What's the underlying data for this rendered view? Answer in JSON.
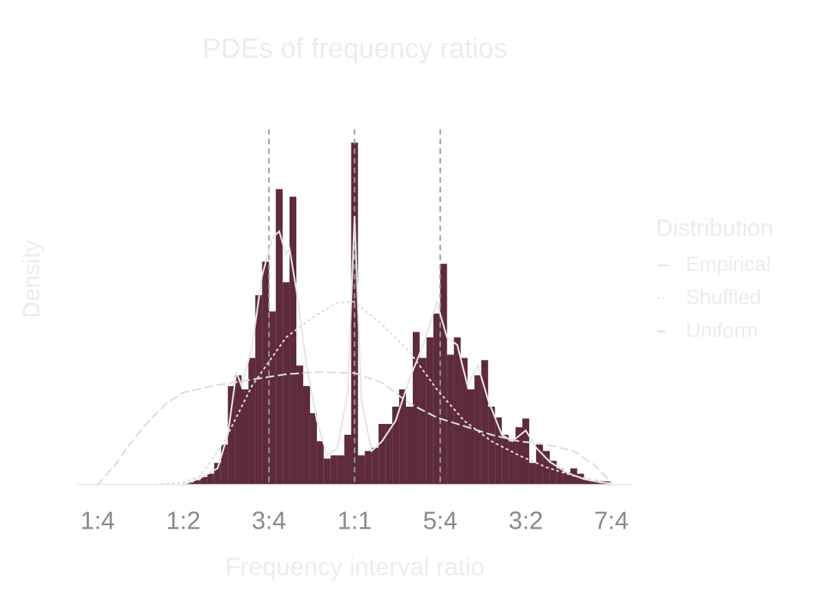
{
  "chart_data": {
    "type": "histogram",
    "title": "PDEs of frequency ratios",
    "x_label": "Frequency interval ratio",
    "y_label": "Density",
    "color": "#5e2a3e",
    "bins": [
      0.51,
      0.53,
      0.55,
      0.57,
      0.59,
      0.61,
      0.63,
      0.65,
      0.67,
      0.69,
      0.71,
      0.73,
      0.75,
      0.77,
      0.79,
      0.81,
      0.83,
      0.85,
      0.87,
      0.89,
      0.91,
      0.93,
      0.95,
      0.97,
      0.99,
      1.01,
      1.03,
      1.05,
      1.07,
      1.09,
      1.11,
      1.13,
      1.15,
      1.17,
      1.19,
      1.21,
      1.23,
      1.25,
      1.27,
      1.29,
      1.31,
      1.33,
      1.35,
      1.37,
      1.39,
      1.41,
      1.43,
      1.45,
      1.47,
      1.49,
      1.51,
      1.53,
      1.55,
      1.57,
      1.59,
      1.61,
      1.63,
      1.65,
      1.67,
      1.69,
      1.71,
      1.73,
      1.75
    ],
    "values": [
      0.02,
      0.04,
      0.07,
      0.1,
      0.2,
      0.37,
      0.91,
      1.01,
      0.88,
      1.17,
      1.75,
      2.06,
      1.6,
      2.73,
      1.87,
      2.66,
      1.1,
      0.91,
      0.66,
      0.4,
      0.24,
      0.27,
      0.27,
      0.46,
      3.16,
      0.27,
      0.31,
      0.34,
      0.56,
      0.56,
      0.72,
      0.88,
      0.72,
      1.41,
      1.17,
      1.36,
      1.58,
      2.04,
      1.2,
      1.36,
      1.17,
      0.88,
      1.01,
      1.15,
      0.72,
      0.62,
      0.46,
      0.4,
      0.53,
      0.61,
      0.2,
      0.37,
      0.31,
      0.22,
      0.15,
      0.11,
      0.15,
      0.1,
      0.05,
      0.04,
      0.03,
      0.03
    ],
    "series": [
      {
        "name": "Empirical",
        "style": "solid",
        "color": "#e6e6e6",
        "x": [
          0.5,
          0.55,
          0.6,
          0.63,
          0.655,
          0.67,
          0.7,
          0.73,
          0.76,
          0.78,
          0.8,
          0.81,
          0.83,
          0.86,
          0.89,
          0.92,
          0.95,
          0.98,
          1.0,
          1.02,
          1.05,
          1.08,
          1.12,
          1.16,
          1.2,
          1.24,
          1.27,
          1.3,
          1.33,
          1.36,
          1.39,
          1.43,
          1.46,
          1.5,
          1.53,
          1.57,
          1.62,
          1.67,
          1.72,
          1.75
        ],
        "values": [
          0,
          0.06,
          0.15,
          0.46,
          1.04,
          0.91,
          1.26,
          1.93,
          2.28,
          2.34,
          2.12,
          2.18,
          1.8,
          1.1,
          0.59,
          0.27,
          0.34,
          0.85,
          2.48,
          0.78,
          0.31,
          0.4,
          0.59,
          0.97,
          1.29,
          1.68,
          1.36,
          1.29,
          0.91,
          1.1,
          0.78,
          0.46,
          0.4,
          0.5,
          0.34,
          0.21,
          0.11,
          0.05,
          0.02,
          0.01
        ]
      },
      {
        "name": "Shuffled",
        "style": "dotted",
        "color": "#dddddd",
        "x": [
          0.42,
          0.5,
          0.55,
          0.62,
          0.7,
          0.8,
          0.88,
          0.95,
          1.0,
          1.08,
          1.16,
          1.24,
          1.32,
          1.4,
          1.48,
          1.56,
          1.64,
          1.72
        ],
        "values": [
          0,
          0.02,
          0.08,
          0.4,
          0.91,
          1.36,
          1.55,
          1.68,
          1.69,
          1.48,
          1.23,
          0.88,
          0.59,
          0.4,
          0.27,
          0.16,
          0.08,
          0.03
        ]
      },
      {
        "name": "Uniform",
        "style": "dashed",
        "color": "#dddddd",
        "x": [
          0.25,
          0.3,
          0.35,
          0.4,
          0.45,
          0.5,
          0.6,
          0.7,
          0.8,
          0.9,
          1.0,
          1.08,
          1.16,
          1.24,
          1.32,
          1.4,
          1.48,
          1.56,
          1.64,
          1.7,
          1.75
        ],
        "values": [
          0,
          0.18,
          0.4,
          0.59,
          0.75,
          0.85,
          0.92,
          0.97,
          1.02,
          1.04,
          1.03,
          0.94,
          0.75,
          0.62,
          0.54,
          0.46,
          0.4,
          0.37,
          0.31,
          0.18,
          0.02
        ]
      }
    ],
    "legend_title": "Distribution",
    "legend": "right",
    "vlines": [
      0.75,
      1,
      1.25
    ],
    "xlim": [
      0.19,
      1.81
    ],
    "ylim": [
      0,
      3.4
    ],
    "xticks": [
      {
        "value": 0.25,
        "label": "1:4"
      },
      {
        "value": 0.5,
        "label": "1:2"
      },
      {
        "value": 0.75,
        "label": "3:4"
      },
      {
        "value": 1,
        "label": "1:1"
      },
      {
        "value": 1.25,
        "label": "5:4"
      },
      {
        "value": 1.5,
        "label": "3:2"
      },
      {
        "value": 1.75,
        "label": "7:4"
      }
    ],
    "grid": false
  }
}
